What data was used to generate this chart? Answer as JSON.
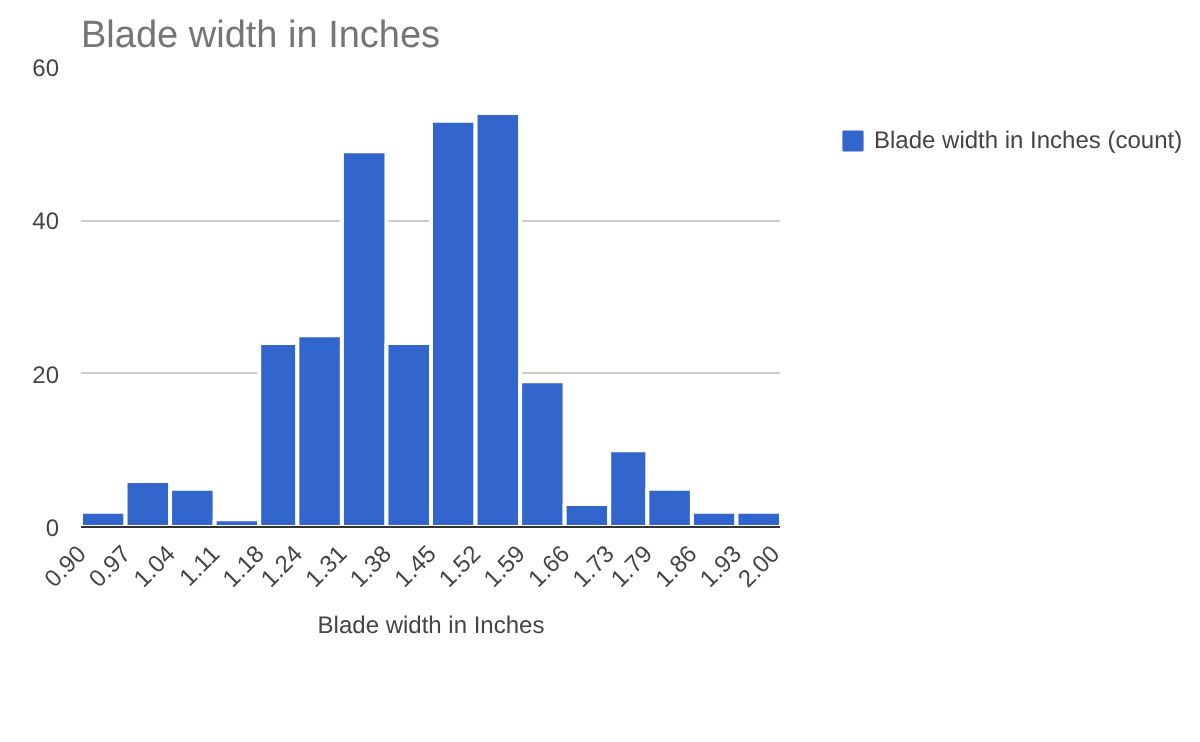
{
  "chart_data": {
    "type": "histogram",
    "title": "Blade width in Inches",
    "xlabel": "Blade width in Inches",
    "bins": [
      0.9,
      0.97,
      1.04,
      1.11,
      1.18,
      1.24,
      1.31,
      1.38,
      1.45,
      1.52,
      1.59,
      1.66,
      1.73,
      1.79,
      1.86,
      1.93,
      2.0
    ],
    "series": [
      {
        "name": "Blade width in Inches (count)",
        "color": "#3366cc",
        "values": [
          2,
          6,
          5,
          1,
          24,
          25,
          49,
          24,
          53,
          54,
          19,
          3,
          10,
          5,
          2,
          2
        ]
      }
    ],
    "xlim": [
      0.9,
      2.0
    ],
    "xticks": [
      {
        "value": 0.9,
        "label": "0.90"
      },
      0.97,
      1.04,
      1.11,
      1.18,
      1.24,
      1.31,
      1.38,
      1.45,
      1.52,
      1.59,
      1.66,
      1.73,
      1.79,
      1.86,
      1.93,
      {
        "value": 2.0,
        "label": "2.00"
      }
    ],
    "ylim": [
      0,
      60
    ],
    "yticks": [
      0,
      20,
      40,
      60
    ],
    "grid": "y",
    "legend": "top right"
  }
}
